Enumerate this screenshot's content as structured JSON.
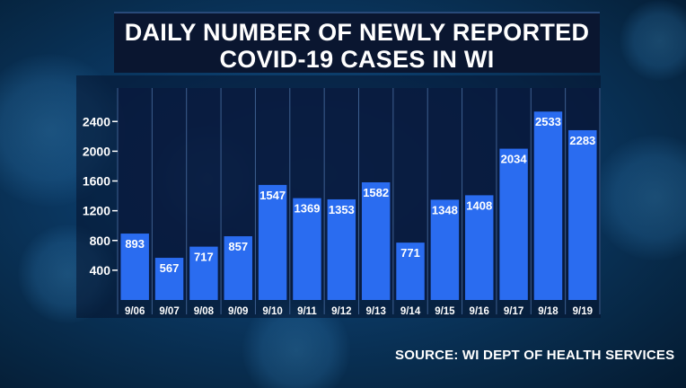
{
  "chart_data": {
    "type": "bar",
    "title_lines": [
      "DAILY NUMBER OF NEWLY REPORTED",
      "COVID-19 CASES IN WI"
    ],
    "categories": [
      "9/06",
      "9/07",
      "9/08",
      "9/09",
      "9/10",
      "9/11",
      "9/12",
      "9/13",
      "9/14",
      "9/15",
      "9/16",
      "9/17",
      "9/18",
      "9/19"
    ],
    "values": [
      893,
      567,
      717,
      857,
      1547,
      1369,
      1353,
      1582,
      771,
      1348,
      1408,
      2034,
      2533,
      2283
    ],
    "yticks": [
      400,
      800,
      1200,
      1600,
      2000,
      2400
    ],
    "ylim": [
      0,
      2850
    ],
    "bar_color": "#2a6cf0",
    "grid": true,
    "source": "SOURCE: WI DEPT OF HEALTH SERVICES"
  }
}
